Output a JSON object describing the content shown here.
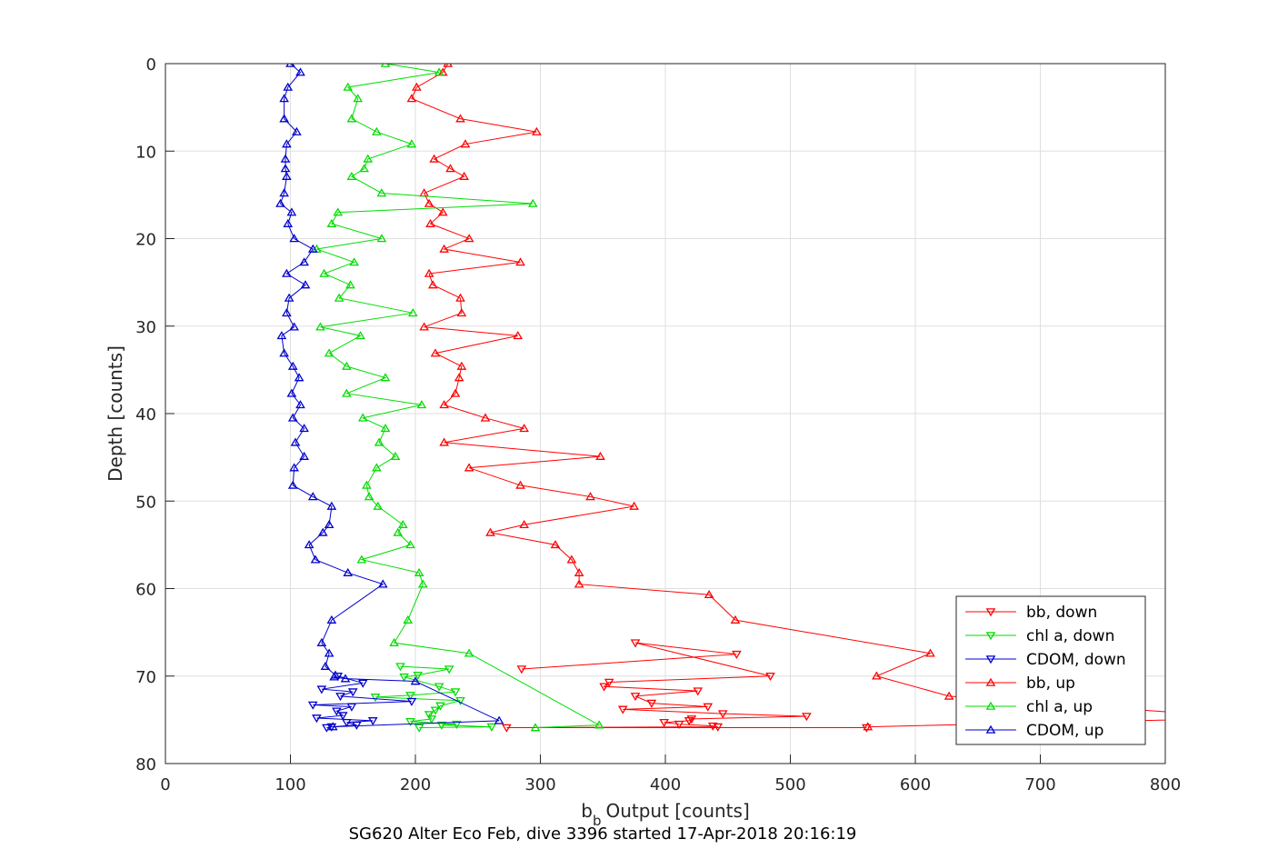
{
  "chart_data": {
    "type": "line",
    "xlabel": "Output [counts]",
    "xlabel_symbol": "b",
    "xlabel_subscript": "b",
    "ylabel": "Depth [counts]",
    "caption": "SG620 Alter Eco Feb, dive 3396 started 17-Apr-2018 20:16:19",
    "xlim": [
      0,
      800
    ],
    "ylim": [
      0,
      80
    ],
    "y_reversed": true,
    "grid": true,
    "legend_position": "bottom-right",
    "x_ticks": [
      "0",
      "100",
      "200",
      "300",
      "400",
      "500",
      "600",
      "700",
      "800"
    ],
    "y_ticks": [
      "0",
      "10",
      "20",
      "30",
      "40",
      "50",
      "60",
      "70",
      "80"
    ],
    "series": [
      {
        "name": "bb, down",
        "color": "#ff0000",
        "marker": "triangle-down",
        "points": [
          [
            285,
            69.2
          ],
          [
            457,
            67.5
          ],
          [
            376,
            66.2
          ],
          [
            484,
            70
          ],
          [
            355,
            70.7
          ],
          [
            351,
            71.2
          ],
          [
            426,
            71.7
          ],
          [
            376,
            72.3
          ],
          [
            389,
            73.1
          ],
          [
            434,
            73.5
          ],
          [
            366,
            73.8
          ],
          [
            446,
            74.3
          ],
          [
            513,
            74.6
          ],
          [
            421,
            74.9
          ],
          [
            419,
            75.1
          ],
          [
            399,
            75.3
          ],
          [
            411,
            75.5
          ],
          [
            438,
            75.7
          ],
          [
            442,
            75.8
          ],
          [
            273,
            75.9
          ],
          [
            561,
            75.9
          ]
        ]
      },
      {
        "name": "chl a, down",
        "color": "#00dd00",
        "marker": "triangle-down",
        "points": [
          [
            188,
            68.9
          ],
          [
            227,
            69.2
          ],
          [
            202,
            69.9
          ],
          [
            191,
            70.1
          ],
          [
            219,
            71.2
          ],
          [
            232,
            71.8
          ],
          [
            196,
            72.2
          ],
          [
            168,
            72.4
          ],
          [
            236,
            72.8
          ],
          [
            220,
            73.4
          ],
          [
            216,
            73.9
          ],
          [
            211,
            74.4
          ],
          [
            213,
            74.9
          ],
          [
            196,
            75.2
          ],
          [
            233,
            75.5
          ],
          [
            221,
            75.6
          ],
          [
            261,
            75.8
          ],
          [
            203,
            75.9
          ]
        ]
      },
      {
        "name": "CDOM, down",
        "color": "#0000cc",
        "marker": "triangle-down",
        "points": [
          [
            138,
            70
          ],
          [
            158,
            70.8
          ],
          [
            125,
            71.5
          ],
          [
            150,
            71.8
          ],
          [
            140,
            72.3
          ],
          [
            197,
            72.9
          ],
          [
            118,
            73.3
          ],
          [
            149,
            73.5
          ],
          [
            137,
            74
          ],
          [
            142,
            74.5
          ],
          [
            121,
            74.8
          ],
          [
            166,
            75.1
          ],
          [
            145,
            75.3
          ],
          [
            153,
            75.6
          ],
          [
            133,
            75.8
          ],
          [
            129,
            75.9
          ]
        ]
      },
      {
        "name": "bb, up",
        "color": "#ff0000",
        "marker": "triangle-up",
        "points": [
          [
            226,
            0
          ],
          [
            222,
            1
          ],
          [
            201,
            2.7
          ],
          [
            197,
            4
          ],
          [
            236,
            6.3
          ],
          [
            297,
            7.8
          ],
          [
            240,
            9.2
          ],
          [
            215,
            10.9
          ],
          [
            228,
            12
          ],
          [
            239,
            12.9
          ],
          [
            207,
            14.8
          ],
          [
            211,
            16
          ],
          [
            222,
            17
          ],
          [
            212,
            18.3
          ],
          [
            243,
            20
          ],
          [
            223,
            21.2
          ],
          [
            284,
            22.7
          ],
          [
            211,
            24
          ],
          [
            214,
            25.3
          ],
          [
            236,
            26.8
          ],
          [
            237,
            28.5
          ],
          [
            207,
            30.1
          ],
          [
            282,
            31.1
          ],
          [
            216,
            33.1
          ],
          [
            237,
            34.6
          ],
          [
            235,
            35.9
          ],
          [
            232,
            37.7
          ],
          [
            223,
            39
          ],
          [
            256,
            40.5
          ],
          [
            287,
            41.7
          ],
          [
            223,
            43.3
          ],
          [
            348,
            44.9
          ],
          [
            243,
            46.2
          ],
          [
            284,
            48.2
          ],
          [
            340,
            49.5
          ],
          [
            375,
            50.6
          ],
          [
            287,
            52.7
          ],
          [
            260,
            53.6
          ],
          [
            312,
            55
          ],
          [
            325,
            56.7
          ],
          [
            331,
            58.2
          ],
          [
            331,
            59.5
          ],
          [
            435,
            60.7
          ],
          [
            456,
            63.6
          ],
          [
            612,
            67.4
          ],
          [
            569,
            70
          ],
          [
            627,
            72.3
          ],
          [
            870,
            74.8
          ],
          [
            562,
            75.8
          ]
        ]
      },
      {
        "name": "chl a, up",
        "color": "#00dd00",
        "marker": "triangle-up",
        "points": [
          [
            176,
            0
          ],
          [
            219,
            1
          ],
          [
            146,
            2.7
          ],
          [
            154,
            4
          ],
          [
            149,
            6.3
          ],
          [
            169,
            7.8
          ],
          [
            197,
            9.2
          ],
          [
            162,
            10.9
          ],
          [
            159,
            12
          ],
          [
            149,
            12.9
          ],
          [
            173,
            14.8
          ],
          [
            294,
            16
          ],
          [
            138,
            17
          ],
          [
            133,
            18.3
          ],
          [
            173,
            20
          ],
          [
            121,
            21.2
          ],
          [
            151,
            22.7
          ],
          [
            127,
            24
          ],
          [
            148,
            25.3
          ],
          [
            139,
            26.8
          ],
          [
            198,
            28.5
          ],
          [
            124,
            30.1
          ],
          [
            156,
            31.1
          ],
          [
            131,
            33.1
          ],
          [
            145,
            34.6
          ],
          [
            176,
            35.9
          ],
          [
            145,
            37.7
          ],
          [
            205,
            39
          ],
          [
            158,
            40.5
          ],
          [
            176,
            41.7
          ],
          [
            171,
            43.3
          ],
          [
            184,
            44.9
          ],
          [
            169,
            46.2
          ],
          [
            161,
            48.2
          ],
          [
            163,
            49.5
          ],
          [
            170,
            50.6
          ],
          [
            190,
            52.7
          ],
          [
            186,
            53.6
          ],
          [
            196,
            55
          ],
          [
            157,
            56.7
          ],
          [
            203,
            58.2
          ],
          [
            206,
            59.5
          ],
          [
            194,
            63.6
          ],
          [
            183,
            66.2
          ],
          [
            243,
            67.4
          ],
          [
            347,
            75.6
          ],
          [
            296,
            75.9
          ]
        ]
      },
      {
        "name": "CDOM, up",
        "color": "#0000cc",
        "marker": "triangle-up",
        "points": [
          [
            100,
            0
          ],
          [
            108,
            1
          ],
          [
            98,
            2.7
          ],
          [
            95,
            4
          ],
          [
            95,
            6.3
          ],
          [
            105,
            7.8
          ],
          [
            97,
            9.2
          ],
          [
            96,
            10.9
          ],
          [
            96,
            12
          ],
          [
            97,
            12.9
          ],
          [
            95,
            14.8
          ],
          [
            92,
            16
          ],
          [
            101,
            17
          ],
          [
            98,
            18.3
          ],
          [
            103,
            20
          ],
          [
            118,
            21.2
          ],
          [
            111,
            22.7
          ],
          [
            97,
            24
          ],
          [
            112,
            25.3
          ],
          [
            99,
            26.8
          ],
          [
            97,
            28.5
          ],
          [
            103,
            30.1
          ],
          [
            93,
            31.1
          ],
          [
            95,
            33.1
          ],
          [
            102,
            34.6
          ],
          [
            107,
            35.9
          ],
          [
            101,
            37.7
          ],
          [
            108,
            39
          ],
          [
            102,
            40.5
          ],
          [
            111,
            41.7
          ],
          [
            104,
            43.3
          ],
          [
            111,
            44.9
          ],
          [
            103,
            46.2
          ],
          [
            102,
            48.2
          ],
          [
            118,
            49.5
          ],
          [
            133,
            50.6
          ],
          [
            131,
            52.7
          ],
          [
            126,
            53.6
          ],
          [
            115,
            55
          ],
          [
            120,
            56.7
          ],
          [
            146,
            58.2
          ],
          [
            174,
            59.5
          ],
          [
            133,
            63.6
          ],
          [
            125,
            66.2
          ],
          [
            131,
            67.4
          ],
          [
            128,
            68.9
          ],
          [
            136,
            69.9
          ],
          [
            135,
            70.1
          ],
          [
            144,
            70.3
          ],
          [
            200,
            70.6
          ],
          [
            267,
            75.1
          ],
          [
            134,
            75.8
          ]
        ]
      }
    ]
  }
}
